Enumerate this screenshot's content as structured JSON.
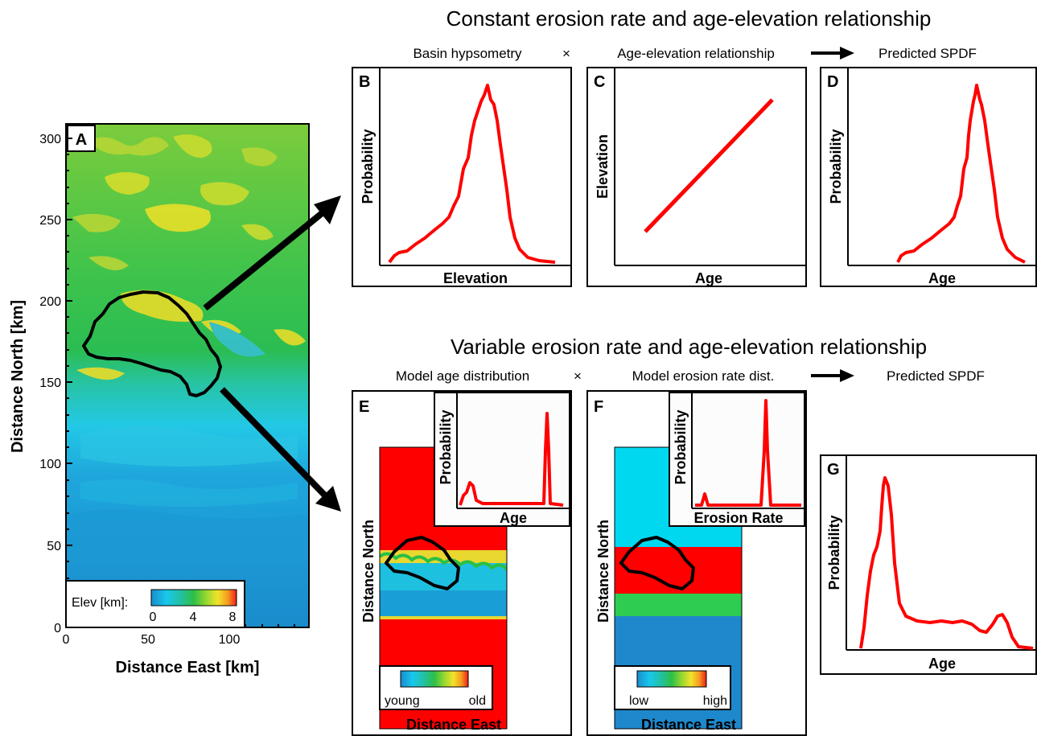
{
  "headers": {
    "top_title": "Constant erosion rate and age-elevation relationship",
    "bottom_title": "Variable erosion rate and age-elevation relationship",
    "top_sub": {
      "left": "Basin hypsometry",
      "times": "×",
      "middle": "Age-elevation relationship",
      "right": "Predicted SPDF"
    },
    "bottom_sub": {
      "left": "Model age distribution",
      "times": "×",
      "middle": "Model erosion rate dist.",
      "right": "Predicted SPDF"
    }
  },
  "panel_a": {
    "letter": "A",
    "xlabel": "Distance East [km]",
    "ylabel": "Distance North [km]",
    "xticks": [
      "0",
      "50",
      "100"
    ],
    "yticks": [
      "0",
      "50",
      "100",
      "150",
      "200",
      "250",
      "300"
    ],
    "colorbar": {
      "label": "Elev [km]:",
      "ticks": [
        "0",
        "4",
        "8"
      ]
    }
  },
  "panel_b": {
    "letter": "B",
    "xlabel": "Elevation",
    "ylabel": "Probability"
  },
  "panel_c": {
    "letter": "C",
    "xlabel": "Age",
    "ylabel": "Elevation"
  },
  "panel_d": {
    "letter": "D",
    "xlabel": "Age",
    "ylabel": "Probability"
  },
  "panel_e": {
    "letter": "E",
    "xlabel": "Distance East",
    "ylabel": "Distance North",
    "inset": {
      "xlabel": "Age",
      "ylabel": "Probability"
    },
    "colorbar": {
      "low": "young",
      "high": "old"
    }
  },
  "panel_f": {
    "letter": "F",
    "xlabel": "Distance East",
    "ylabel": "Distance North",
    "inset": {
      "xlabel": "Erosion Rate",
      "ylabel": "Probability"
    },
    "colorbar": {
      "low": "low",
      "high": "high"
    }
  },
  "panel_g": {
    "letter": "G",
    "xlabel": "Age",
    "ylabel": "Probability"
  },
  "colors": {
    "curve": "#ff0000",
    "elev_low": "#1e8fd0",
    "elev_mid": "#2fbf4a",
    "elev_high": "#f0e020",
    "red_zone": "#ff0000",
    "cyan_zone": "#00d8f0",
    "green_zone": "#2ecc50",
    "blue_zone": "#1e88cc"
  }
}
